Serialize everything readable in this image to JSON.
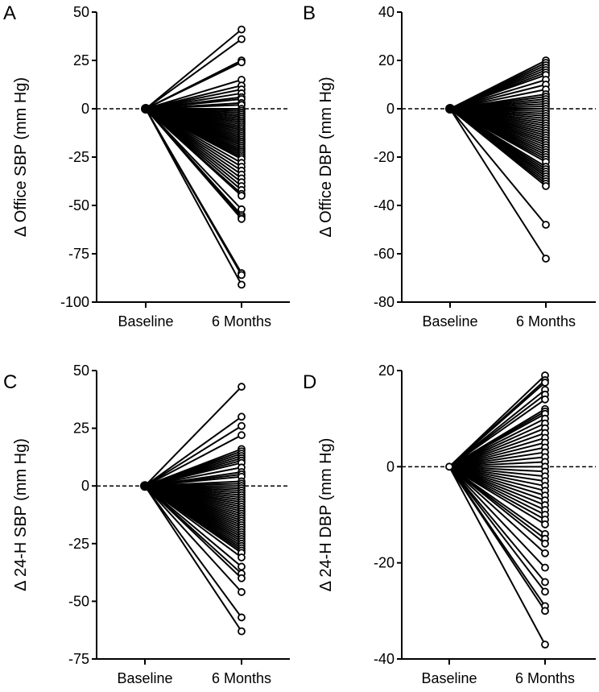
{
  "chart_data": [
    {
      "type": "line",
      "panel_label": "A",
      "ylabel": "Δ Office SBP (mm Hg)",
      "categories": [
        "Baseline",
        "6 Months"
      ],
      "ylim": [
        -100,
        50
      ],
      "yticks": [
        50,
        25,
        0,
        -25,
        -50,
        -75,
        -100
      ],
      "baseline_value": 0,
      "reference_line": 0,
      "values_6_months": [
        41,
        36,
        25,
        24,
        15,
        12,
        10,
        8,
        6,
        5,
        3,
        2,
        0,
        -1,
        -2,
        -3,
        -4,
        -5,
        -6,
        -7,
        -8,
        -9,
        -10,
        -11,
        -12,
        -13,
        -14,
        -15,
        -16,
        -17,
        -18,
        -19,
        -20,
        -21,
        -22,
        -23,
        -24,
        -25,
        -26,
        -28,
        -30,
        -32,
        -34,
        -36,
        -38,
        -40,
        -42,
        -44,
        -45,
        -52,
        -55,
        -56,
        -57,
        -85,
        -86,
        -91
      ]
    },
    {
      "type": "line",
      "panel_label": "B",
      "ylabel": "Δ Office DBP (mm Hg)",
      "categories": [
        "Baseline",
        "6 Months"
      ],
      "ylim": [
        -80,
        40
      ],
      "yticks": [
        40,
        20,
        0,
        -20,
        -40,
        -60,
        -80
      ],
      "baseline_value": 0,
      "reference_line": 0,
      "values_6_months": [
        20,
        19,
        18,
        17,
        16,
        15,
        14,
        12,
        10,
        8,
        6,
        5,
        4,
        3,
        2,
        1,
        0,
        -1,
        -2,
        -3,
        -4,
        -5,
        -6,
        -7,
        -8,
        -9,
        -10,
        -11,
        -12,
        -13,
        -14,
        -15,
        -16,
        -17,
        -18,
        -19,
        -20,
        -21,
        -22,
        -24,
        -25,
        -26,
        -27,
        -28,
        -29,
        -30,
        -31,
        -32,
        -48,
        -62
      ]
    },
    {
      "type": "line",
      "panel_label": "C",
      "ylabel": "Δ 24-H SBP (mm Hg)",
      "categories": [
        "Baseline",
        "6 Months"
      ],
      "ylim": [
        -75,
        50
      ],
      "yticks": [
        50,
        25,
        0,
        -25,
        -50,
        -75
      ],
      "baseline_value": 0,
      "reference_line": 0,
      "values_6_months": [
        43,
        30,
        26,
        22,
        16,
        15,
        14,
        13,
        12,
        11,
        10,
        8,
        6,
        5,
        4,
        2,
        1,
        0,
        -1,
        -2,
        -3,
        -4,
        -5,
        -6,
        -7,
        -8,
        -9,
        -10,
        -11,
        -12,
        -13,
        -14,
        -15,
        -16,
        -17,
        -18,
        -19,
        -20,
        -21,
        -22,
        -23,
        -24,
        -25,
        -26,
        -27,
        -28,
        -29,
        -31,
        -35,
        -38,
        -40,
        -46,
        -57,
        -63
      ]
    },
    {
      "type": "line",
      "panel_label": "D",
      "ylabel": "Δ 24-H DBP (mm Hg)",
      "categories": [
        "Baseline",
        "6 Months"
      ],
      "ylim": [
        -40,
        20
      ],
      "yticks": [
        20,
        0,
        -20,
        -40
      ],
      "baseline_value": 0,
      "reference_line": 0,
      "values_6_months": [
        19,
        18,
        17.5,
        16,
        15,
        14,
        12,
        11.5,
        11,
        10,
        9,
        8,
        7,
        6,
        5,
        4,
        3,
        2,
        1,
        0,
        -1,
        -2,
        -3,
        -4,
        -5,
        -6,
        -7,
        -8,
        -9,
        -10,
        -11,
        -12,
        -14,
        -15,
        -16,
        -18,
        -21,
        -24,
        -26,
        -29,
        -30,
        -37
      ]
    }
  ]
}
